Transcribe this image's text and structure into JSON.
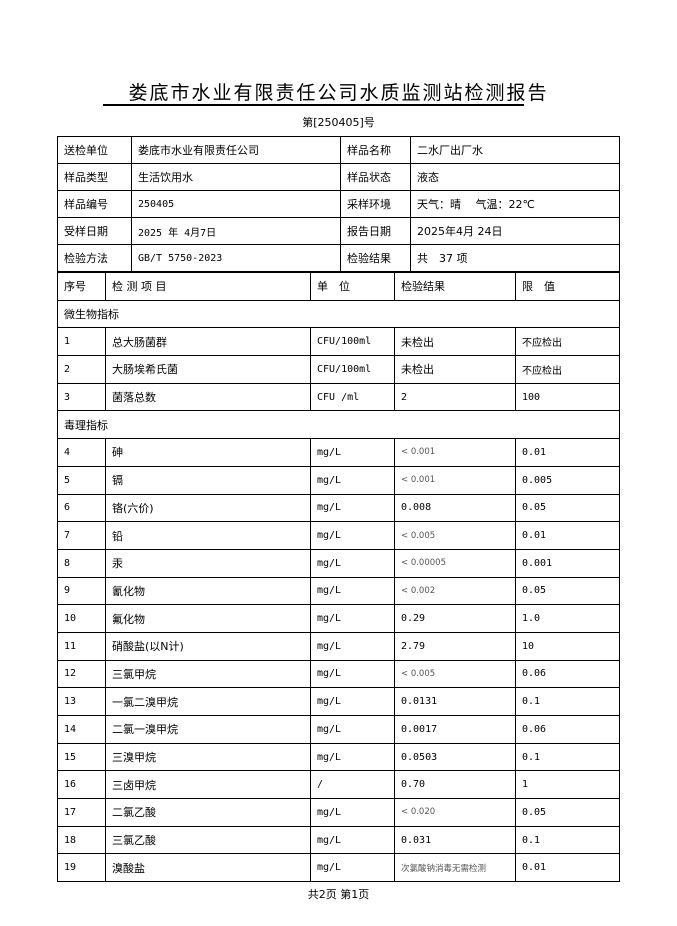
{
  "title": "娄底市水业有限责任公司水质监测站检测报告",
  "report_no": "第[250405]号",
  "info": [
    [
      "送检单位",
      "娄底市水业有限责任公司",
      "样品名称",
      "二水厂出厂水"
    ],
    [
      "样品类型",
      "生活饮用水",
      "样品状态",
      "液态"
    ],
    [
      "样品编号",
      "250405",
      "采样环境",
      "天气：晴　 气温：22℃"
    ],
    [
      "受样日期",
      "2025 年 4月7日",
      "报告日期",
      "2025年4月 24日"
    ],
    [
      "检验方法",
      "GB/T 5750-2023",
      "检验结果",
      "共　37 项"
    ]
  ],
  "headers": [
    "序号",
    "检 测 项 目",
    "单　位",
    "检验结果",
    "限　值"
  ],
  "sections": [
    {
      "title": "微生物指标",
      "rows": [
        [
          "1",
          "总大肠菌群",
          "CFU/100ml",
          "未检出",
          "不应检出"
        ],
        [
          "2",
          "大肠埃希氏菌",
          "CFU/100ml",
          "未检出",
          "不应检出"
        ],
        [
          "3",
          "菌落总数",
          "CFU /ml",
          "2",
          "100"
        ]
      ]
    },
    {
      "title": "毒理指标",
      "rows": [
        [
          "4",
          "砷",
          "mg/L",
          "< 0.001",
          "0.01"
        ],
        [
          "5",
          "镉",
          "mg/L",
          "< 0.001",
          "0.005"
        ],
        [
          "6",
          "铬(六价)",
          "mg/L",
          "0.008",
          "0.05"
        ],
        [
          "7",
          "铅",
          "mg/L",
          "< 0.005",
          "0.01"
        ],
        [
          "8",
          "汞",
          "mg/L",
          "< 0.00005",
          "0.001"
        ],
        [
          "9",
          "氰化物",
          "mg/L",
          "< 0.002",
          "0.05"
        ],
        [
          "10",
          "氟化物",
          "mg/L",
          "0.29",
          "1.0"
        ],
        [
          "11",
          "硝酸盐(以N计)",
          "mg/L",
          "2.79",
          "10"
        ],
        [
          "12",
          "三氯甲烷",
          "mg/L",
          "< 0.005",
          "0.06"
        ],
        [
          "13",
          "一氯二溴甲烷",
          "mg/L",
          "0.0131",
          "0.1"
        ],
        [
          "14",
          "二氯一溴甲烷",
          "mg/L",
          "0.0017",
          "0.06"
        ],
        [
          "15",
          "三溴甲烷",
          "mg/L",
          "0.0503",
          "0.1"
        ],
        [
          "16",
          "三卤甲烷",
          "/",
          "0.70",
          "1"
        ],
        [
          "17",
          "二氯乙酸",
          "mg/L",
          "< 0.020",
          "0.05"
        ],
        [
          "18",
          "三氯乙酸",
          "mg/L",
          "0.031",
          "0.1"
        ],
        [
          "19",
          "溴酸盐",
          "mg/L",
          "次氯酸钠消毒无需检测",
          "0.01"
        ]
      ]
    }
  ],
  "footer": "共2页 第1页"
}
